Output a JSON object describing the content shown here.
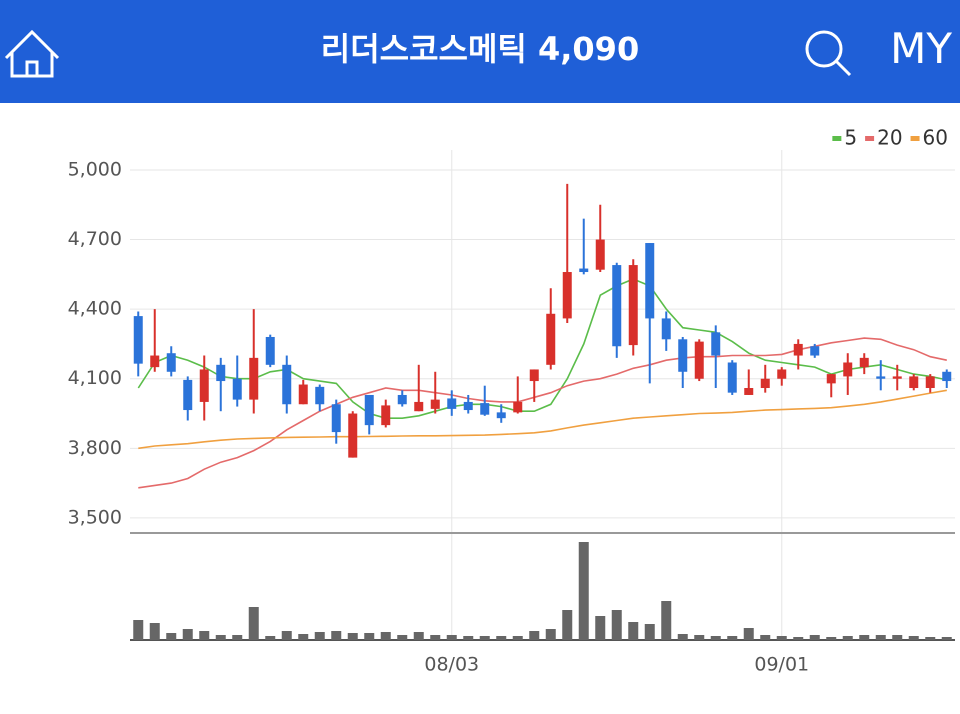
{
  "header": {
    "title": "리더스코스메틱 4,090",
    "my": "MY"
  },
  "chart_data": {
    "type": "candlestick",
    "categories": [
      null,
      null,
      null,
      null,
      null,
      null,
      null,
      null,
      null,
      null,
      null,
      null,
      null,
      null,
      null,
      null,
      null,
      null,
      null,
      "08/03",
      null,
      null,
      null,
      null,
      null,
      null,
      null,
      null,
      null,
      null,
      null,
      null,
      null,
      null,
      null,
      null,
      null,
      null,
      null,
      "09/01",
      null,
      null,
      null,
      null,
      null,
      null,
      null,
      null,
      null,
      null
    ],
    "open": [
      4370,
      4150,
      4210,
      4095,
      4000,
      4160,
      4100,
      4010,
      4280,
      4160,
      3990,
      4065,
      3990,
      3760,
      4030,
      3900,
      4030,
      3960,
      3970,
      4015,
      4000,
      3995,
      3955,
      3955,
      4090,
      4160,
      4360,
      4575,
      4570,
      4590,
      4245,
      4685,
      4360,
      4270,
      4100,
      4300,
      4170,
      4030,
      4060,
      4100,
      4200,
      4240,
      4080,
      4110,
      4150,
      4110,
      4100,
      4060,
      4060,
      4130
    ],
    "high": [
      4390,
      4400,
      4240,
      4110,
      4200,
      4190,
      4200,
      4400,
      4290,
      4200,
      4095,
      4075,
      4010,
      3960,
      4030,
      4010,
      4050,
      4160,
      4130,
      4050,
      4030,
      4070,
      3990,
      4110,
      4140,
      4490,
      4940,
      4790,
      4850,
      4600,
      4615,
      4685,
      4390,
      4280,
      4270,
      4330,
      4180,
      4140,
      4160,
      4150,
      4270,
      4250,
      4120,
      4210,
      4210,
      4180,
      4160,
      4120,
      4120,
      4140
    ],
    "low": [
      4110,
      4130,
      4110,
      3920,
      3920,
      3960,
      3980,
      3950,
      4150,
      3950,
      3990,
      3960,
      3820,
      3760,
      3860,
      3890,
      3980,
      3960,
      3950,
      3940,
      3950,
      3940,
      3910,
      3950,
      4000,
      4140,
      4340,
      4550,
      4560,
      4190,
      4200,
      4080,
      4220,
      4060,
      4090,
      4060,
      4030,
      4030,
      4040,
      4070,
      4140,
      4190,
      4020,
      4030,
      4120,
      4050,
      4050,
      4050,
      4040,
      4060
    ],
    "close": [
      4165,
      4200,
      4130,
      3965,
      4140,
      4090,
      4010,
      4190,
      4160,
      3990,
      4075,
      3990,
      3870,
      3950,
      3900,
      3985,
      3990,
      4000,
      4010,
      3970,
      3965,
      3945,
      3930,
      4000,
      4140,
      4380,
      4560,
      4560,
      4700,
      4240,
      4590,
      4360,
      4270,
      4130,
      4260,
      4200,
      4040,
      4060,
      4100,
      4140,
      4250,
      4200,
      4120,
      4170,
      4190,
      4100,
      4110,
      4110,
      4110,
      4090
    ],
    "up_color": "#d8302b",
    "down_color": "#2b73d9",
    "series": [
      {
        "name": "5",
        "color": "#5bbd4a",
        "values": [
          4060,
          4170,
          4200,
          4180,
          4150,
          4110,
          4100,
          4100,
          4130,
          4140,
          4100,
          4090,
          4080,
          4000,
          3950,
          3930,
          3930,
          3940,
          3960,
          3980,
          3990,
          3990,
          3980,
          3960,
          3960,
          3990,
          4100,
          4250,
          4460,
          4500,
          4530,
          4500,
          4400,
          4320,
          4310,
          4300,
          4260,
          4210,
          4180,
          4170,
          4160,
          4150,
          4120,
          4140,
          4150,
          4160,
          4140,
          4120,
          4110,
          4095
        ]
      },
      {
        "name": "20",
        "color": "#e46a6a",
        "values": [
          3630,
          3640,
          3650,
          3670,
          3710,
          3740,
          3760,
          3790,
          3830,
          3880,
          3920,
          3960,
          3990,
          4020,
          4040,
          4060,
          4050,
          4050,
          4040,
          4030,
          4015,
          4005,
          4000,
          4000,
          4020,
          4040,
          4070,
          4090,
          4100,
          4120,
          4145,
          4160,
          4180,
          4190,
          4195,
          4195,
          4200,
          4200,
          4200,
          4205,
          4225,
          4240,
          4255,
          4265,
          4275,
          4270,
          4245,
          4225,
          4195,
          4180
        ]
      },
      {
        "name": "60",
        "color": "#f0a040",
        "values": [
          3800,
          3810,
          3815,
          3820,
          3828,
          3835,
          3840,
          3843,
          3845,
          3847,
          3848,
          3849,
          3850,
          3850,
          3851,
          3852,
          3853,
          3854,
          3854,
          3855,
          3856,
          3857,
          3860,
          3863,
          3867,
          3875,
          3888,
          3900,
          3910,
          3920,
          3930,
          3935,
          3940,
          3945,
          3950,
          3952,
          3955,
          3960,
          3965,
          3967,
          3970,
          3972,
          3975,
          3982,
          3990,
          4000,
          4012,
          4025,
          4038,
          4050
        ]
      }
    ],
    "ylim": [
      3435,
      5086
    ],
    "yticks": [
      {
        "value": 5000,
        "label": "5,000"
      },
      {
        "value": 4700,
        "label": "4,700"
      },
      {
        "value": 4400,
        "label": "4,400"
      },
      {
        "value": 4100,
        "label": "4,100"
      },
      {
        "value": 3800,
        "label": "3,800"
      },
      {
        "value": 3500,
        "label": "3,500"
      }
    ],
    "grid": true,
    "legend": "top-right",
    "volume": {
      "color": "#666666",
      "ylim": [
        0,
        107
      ],
      "values": [
        20,
        17,
        7,
        11,
        9,
        5,
        5,
        33,
        4,
        9,
        6,
        8,
        9,
        7,
        7,
        8,
        5,
        8,
        5,
        5,
        4,
        4,
        4,
        4,
        9,
        11,
        30,
        98,
        24,
        30,
        18,
        16,
        39,
        6,
        5,
        4,
        4,
        12,
        5,
        4,
        3,
        5,
        3,
        4,
        5,
        5,
        5,
        4,
        3,
        3
      ]
    }
  }
}
